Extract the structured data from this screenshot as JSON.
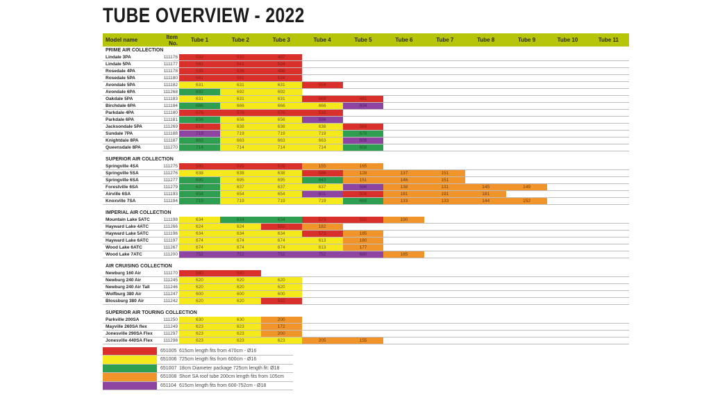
{
  "title": "TUBE OVERVIEW - 2022",
  "colors": {
    "r": "#d9302b",
    "y": "#f6e91b",
    "g": "#2e9e50",
    "o": "#f1952b",
    "p": "#8d45a1",
    "header": "#b6c50a"
  },
  "header": {
    "model": "Model name",
    "item": "Item No.",
    "tubes": [
      "Tube 1",
      "Tube 2",
      "Tube 3",
      "Tube 4",
      "Tube 5",
      "Tube 6",
      "Tube 7",
      "Tube 8",
      "Tube 9",
      "Tube 10",
      "Tube 11"
    ]
  },
  "sections": [
    {
      "title": "PRIME AIR COLLECTION",
      "rows": [
        {
          "model": "Lindale 3PA",
          "item": "111176",
          "cells": [
            [
              "532",
              "r"
            ],
            [
              "532",
              "r"
            ],
            [
              "487",
              "r"
            ]
          ]
        },
        {
          "model": "Lindale 5PA",
          "item": "111177",
          "cells": [
            [
              "581",
              "r"
            ],
            [
              "581",
              "r"
            ],
            [
              "524",
              "r"
            ]
          ]
        },
        {
          "model": "Rosedale 4PA",
          "item": "111178",
          "cells": [
            [
              "536",
              "r"
            ],
            [
              "536",
              "r"
            ],
            [
              "486",
              "r"
            ]
          ]
        },
        {
          "model": "Rosedale 5PA",
          "item": "111180",
          "cells": [
            [
              "581",
              "r"
            ],
            [
              "581",
              "r"
            ],
            [
              "524",
              "r"
            ]
          ]
        },
        {
          "model": "Avondale 5PA",
          "item": "111182",
          "cells": [
            [
              "631",
              "y"
            ],
            [
              "631",
              "y"
            ],
            [
              "631",
              "y"
            ],
            [
              "554",
              "r"
            ]
          ]
        },
        {
          "model": "Avondale 6PA",
          "item": "111268",
          "cells": [
            [
              "692",
              "g"
            ],
            [
              "692",
              "y"
            ],
            [
              "692",
              "y"
            ]
          ]
        },
        {
          "model": "Oakdale 5PA",
          "item": "111183",
          "cells": [
            [
              "631",
              "y"
            ],
            [
              "631",
              "y"
            ],
            [
              "631",
              "y"
            ],
            [
              "569",
              "r"
            ],
            [
              "481",
              "r"
            ]
          ]
        },
        {
          "model": "Birchdale 6PA",
          "item": "111184",
          "cells": [
            [
              "666",
              "g"
            ],
            [
              "666",
              "y"
            ],
            [
              "666",
              "y"
            ],
            [
              "666",
              "y"
            ],
            [
              "604",
              "p"
            ]
          ]
        },
        {
          "model": "Parkdale 4PA",
          "item": "111180",
          "cells": [
            [
              "576",
              "r"
            ],
            [
              "576",
              "r"
            ],
            [
              "576",
              "r"
            ],
            [
              "516",
              "r"
            ]
          ]
        },
        {
          "model": "Parkdale 6PA",
          "item": "111181",
          "cells": [
            [
              "656",
              "g"
            ],
            [
              "656",
              "y"
            ],
            [
              "656",
              "y"
            ],
            [
              "598",
              "p"
            ]
          ]
        },
        {
          "model": "Jacksondale 5PA",
          "item": "111269",
          "cells": [
            [
              "610",
              "r"
            ],
            [
              "638",
              "y"
            ],
            [
              "638",
              "y"
            ],
            [
              "638",
              "y"
            ],
            [
              "569",
              "r"
            ]
          ]
        },
        {
          "model": "Sundale 7PA",
          "item": "111188",
          "cells": [
            [
              "719",
              "p"
            ],
            [
              "719",
              "y"
            ],
            [
              "719",
              "y"
            ],
            [
              "719",
              "y"
            ],
            [
              "678",
              "g"
            ]
          ]
        },
        {
          "model": "Knightdale 8PA",
          "item": "111187",
          "cells": [
            [
              "663",
              "g"
            ],
            [
              "663",
              "y"
            ],
            [
              "663",
              "y"
            ],
            [
              "663",
              "y"
            ],
            [
              "608",
              "p"
            ]
          ]
        },
        {
          "model": "Queensdale 8PA",
          "item": "111270",
          "cells": [
            [
              "714",
              "g"
            ],
            [
              "714",
              "y"
            ],
            [
              "714",
              "y"
            ],
            [
              "714",
              "y"
            ],
            [
              "658",
              "g"
            ]
          ]
        }
      ]
    },
    {
      "title": "SUPERIOR AIR COLLECTION",
      "rows": [
        {
          "model": "Springville 4SA",
          "item": "111275",
          "cells": [
            [
              "595",
              "r"
            ],
            [
              "595",
              "r"
            ],
            [
              "539",
              "r"
            ],
            [
              "155",
              "o"
            ],
            [
              "165",
              "o"
            ]
          ]
        },
        {
          "model": "Springville 5SA",
          "item": "111276",
          "cells": [
            [
              "638",
              "y"
            ],
            [
              "638",
              "y"
            ],
            [
              "638",
              "y"
            ],
            [
              "586",
              "r"
            ],
            [
              "128",
              "o"
            ],
            [
              "137",
              "o"
            ],
            [
              "151",
              "o"
            ]
          ]
        },
        {
          "model": "Springville 6SA",
          "item": "111277",
          "cells": [
            [
              "695",
              "g"
            ],
            [
              "695",
              "y"
            ],
            [
              "695",
              "y"
            ],
            [
              "643",
              "g"
            ],
            [
              "151",
              "o"
            ],
            [
              "146",
              "o"
            ],
            [
              "151",
              "o"
            ]
          ]
        },
        {
          "model": "Forestville 6SA",
          "item": "111279",
          "cells": [
            [
              "637",
              "g"
            ],
            [
              "637",
              "y"
            ],
            [
              "637",
              "y"
            ],
            [
              "637",
              "y"
            ],
            [
              "596",
              "p"
            ],
            [
              "138",
              "o"
            ],
            [
              "131",
              "o"
            ],
            [
              "145",
              "o"
            ],
            [
              "149",
              "o"
            ]
          ]
        },
        {
          "model": "Airville 6SA",
          "item": "111193",
          "cells": [
            [
              "654",
              "g"
            ],
            [
              "654",
              "y"
            ],
            [
              "654",
              "y"
            ],
            [
              "601",
              "p"
            ],
            [
              "506",
              "r"
            ],
            [
              "181",
              "o"
            ],
            [
              "191",
              "o"
            ],
            [
              "181",
              "o"
            ]
          ]
        },
        {
          "model": "Knoxville 7SA",
          "item": "111194",
          "cells": [
            [
              "719",
              "g"
            ],
            [
              "719",
              "y"
            ],
            [
              "719",
              "y"
            ],
            [
              "719",
              "y"
            ],
            [
              "668",
              "g"
            ],
            [
              "133",
              "o"
            ],
            [
              "133",
              "o"
            ],
            [
              "144",
              "o"
            ],
            [
              "152",
              "o"
            ]
          ]
        }
      ]
    },
    {
      "title": "IMPERIAL AIR COLLECTION",
      "rows": [
        {
          "model": "Mountain Lake 5ATC",
          "item": "111198",
          "cells": [
            [
              "634",
              "y"
            ],
            [
              "634",
              "g"
            ],
            [
              "634",
              "g"
            ],
            [
              "573",
              "r"
            ],
            [
              "550",
              "r"
            ],
            [
              "190",
              "o"
            ]
          ]
        },
        {
          "model": "Hayward Lake 4ATC",
          "item": "111266",
          "cells": [
            [
              "624",
              "y"
            ],
            [
              "624",
              "y"
            ],
            [
              "563",
              "r"
            ],
            [
              "182",
              "o"
            ]
          ]
        },
        {
          "model": "Hayward Lake 5ATC",
          "item": "111196",
          "cells": [
            [
              "634",
              "y"
            ],
            [
              "634",
              "y"
            ],
            [
              "634",
              "y"
            ],
            [
              "573",
              "r"
            ],
            [
              "185",
              "o"
            ]
          ]
        },
        {
          "model": "Hayward Lake 6ATC",
          "item": "111197",
          "cells": [
            [
              "674",
              "y"
            ],
            [
              "674",
              "y"
            ],
            [
              "674",
              "y"
            ],
            [
              "613",
              "y"
            ],
            [
              "180",
              "o"
            ]
          ]
        },
        {
          "model": "Wood Lake 6ATC",
          "item": "111267",
          "cells": [
            [
              "674",
              "y"
            ],
            [
              "674",
              "y"
            ],
            [
              "674",
              "y"
            ],
            [
              "613",
              "y"
            ],
            [
              "177",
              "o"
            ]
          ]
        },
        {
          "model": "Wood Lake 7ATC",
          "item": "111200",
          "cells": [
            [
              "752",
              "p"
            ],
            [
              "752",
              "p"
            ],
            [
              "752",
              "p"
            ],
            [
              "752",
              "p"
            ],
            [
              "680",
              "p"
            ],
            [
              "185",
              "o"
            ]
          ]
        }
      ]
    },
    {
      "title": "AIR CRUISING COLLECTION",
      "rows": [
        {
          "model": "Newburg 160 Air",
          "item": "111170",
          "cells": [
            [
              "580",
              "r"
            ],
            [
              "580",
              "r"
            ]
          ]
        },
        {
          "model": "Newburg 240 Air",
          "item": "111245",
          "cells": [
            [
              "620",
              "y"
            ],
            [
              "620",
              "y"
            ],
            [
              "620",
              "y"
            ]
          ]
        },
        {
          "model": "Newburg 240 Air Tall",
          "item": "111246",
          "cells": [
            [
              "620",
              "y"
            ],
            [
              "620",
              "y"
            ],
            [
              "620",
              "y"
            ]
          ]
        },
        {
          "model": "Wolfburg 380 Air",
          "item": "111247",
          "cells": [
            [
              "600",
              "y"
            ],
            [
              "600",
              "y"
            ],
            [
              "600",
              "y"
            ]
          ]
        },
        {
          "model": "Blossburg 380 Air",
          "item": "111242",
          "cells": [
            [
              "620",
              "y"
            ],
            [
              "620",
              "y"
            ],
            [
              "532",
              "r"
            ]
          ]
        }
      ]
    },
    {
      "title": "SUPERIOR AIR TOURING COLLECTION",
      "rows": [
        {
          "model": "Parkville 200SA",
          "item": "111250",
          "cells": [
            [
              "630",
              "y"
            ],
            [
              "630",
              "y"
            ],
            [
              "200",
              "o"
            ]
          ]
        },
        {
          "model": "Mayville 260SA flex",
          "item": "111249",
          "cells": [
            [
              "623",
              "y"
            ],
            [
              "623",
              "y"
            ],
            [
              "172",
              "o"
            ]
          ]
        },
        {
          "model": "Jonesville 290SA Flex",
          "item": "111297",
          "cells": [
            [
              "623",
              "y"
            ],
            [
              "623",
              "y"
            ],
            [
              "200",
              "o"
            ]
          ]
        },
        {
          "model": "Jonesville 440SA Flex",
          "item": "111298",
          "cells": [
            [
              "623",
              "y"
            ],
            [
              "623",
              "y"
            ],
            [
              "623",
              "y"
            ],
            [
              "205",
              "o"
            ],
            [
              "155",
              "o"
            ]
          ]
        }
      ]
    }
  ],
  "legend": [
    {
      "color": "r",
      "code": "651005",
      "desc": "615cm length fits from 470cm - Ø16"
    },
    {
      "color": "y",
      "code": "651006",
      "desc": "725cm length fits from 600cm - Ø16"
    },
    {
      "color": "g",
      "code": "651007",
      "desc": "18cm Diameter package 725cm length fit: Ø18"
    },
    {
      "color": "o",
      "code": "651008",
      "desc": "Short SA roof tube 200cm length fits from 105cm"
    },
    {
      "color": "p",
      "code": "651104",
      "desc": "615cm length fits from 600-752cm - Ø18"
    }
  ]
}
